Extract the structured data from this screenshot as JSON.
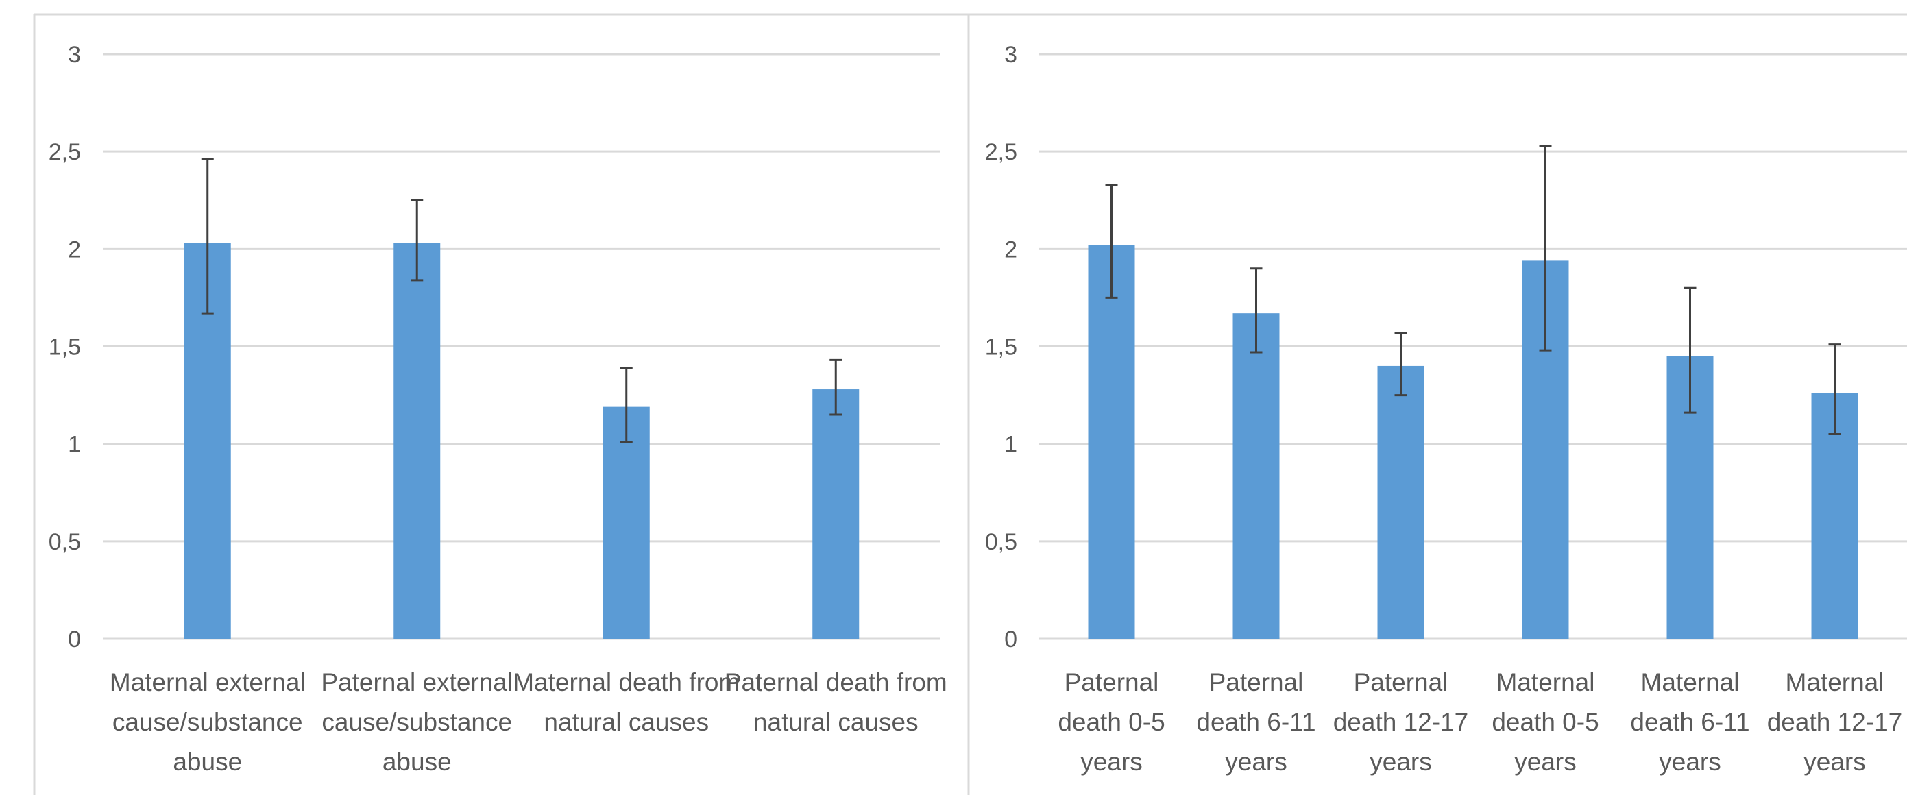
{
  "chart_data": [
    {
      "type": "bar",
      "title": "",
      "xlabel": "",
      "ylabel": "",
      "ylim": [
        0,
        3
      ],
      "yticks": [
        "0",
        "0,5",
        "1",
        "1,5",
        "2",
        "2,5",
        "3"
      ],
      "grid": true,
      "bar_color": "#5B9BD5",
      "categories": [
        [
          "Maternal external",
          "cause/substance",
          "abuse"
        ],
        [
          "Paternal external",
          "cause/substance",
          "abuse"
        ],
        [
          "Maternal death from",
          "natural causes"
        ],
        [
          "Paternal death from",
          "natural causes"
        ]
      ],
      "values": [
        2.03,
        2.03,
        1.19,
        1.28
      ],
      "error_low": [
        1.67,
        1.84,
        1.01,
        1.15
      ],
      "error_high": [
        2.46,
        2.25,
        1.39,
        1.43
      ]
    },
    {
      "type": "bar",
      "title": "",
      "xlabel": "",
      "ylabel": "",
      "ylim": [
        0,
        3
      ],
      "yticks": [
        "0",
        "0,5",
        "1",
        "1,5",
        "2",
        "2,5",
        "3"
      ],
      "grid": true,
      "bar_color": "#5B9BD5",
      "categories": [
        [
          "Paternal",
          "death 0-5",
          "years"
        ],
        [
          "Paternal",
          "death 6-11",
          "years"
        ],
        [
          "Paternal",
          "death 12-17",
          "years"
        ],
        [
          "Maternal",
          "death 0-5",
          "years"
        ],
        [
          "Maternal",
          "death 6-11",
          "years"
        ],
        [
          "Maternal",
          "death 12-17",
          "years"
        ]
      ],
      "values": [
        2.02,
        1.67,
        1.4,
        1.94,
        1.45,
        1.26
      ],
      "error_low": [
        1.75,
        1.47,
        1.25,
        1.48,
        1.16,
        1.05
      ],
      "error_high": [
        2.33,
        1.9,
        1.57,
        2.53,
        1.8,
        1.51
      ]
    }
  ]
}
